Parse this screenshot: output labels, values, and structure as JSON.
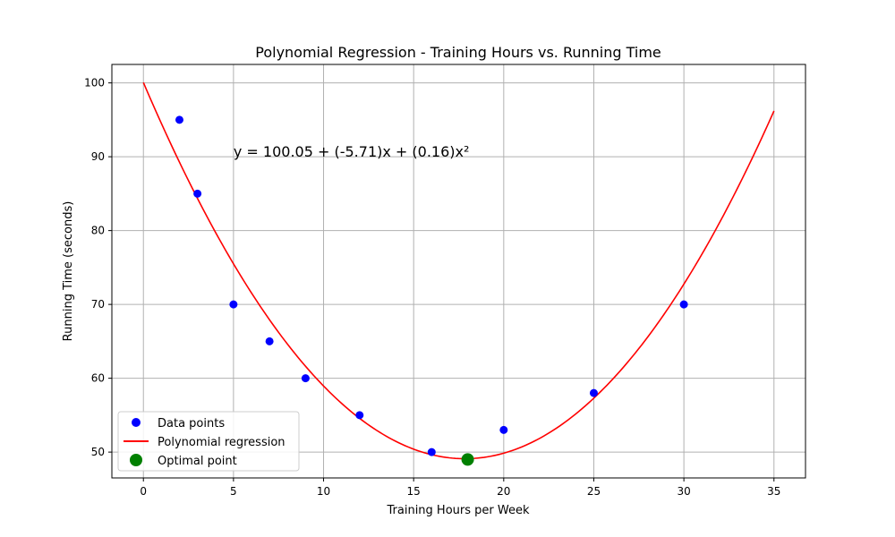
{
  "chart_data": {
    "type": "scatter",
    "title": "Polynomial Regression - Training Hours vs. Running Time",
    "xlabel": "Training Hours per Week",
    "ylabel": "Running Time (seconds)",
    "xlim": [
      -1.75,
      36.75
    ],
    "ylim": [
      46.5,
      102.5
    ],
    "xticks": [
      0,
      5,
      10,
      15,
      20,
      25,
      30,
      35
    ],
    "yticks": [
      50,
      60,
      70,
      80,
      90,
      100
    ],
    "grid": true,
    "legend_position": "lower-left",
    "annotation": "y = 100.05 + (-5.71)x + (0.16)x²",
    "annotation_at": {
      "x": 5,
      "y": 90
    },
    "series": [
      {
        "name": "Data points",
        "kind": "scatter",
        "color": "#0000ff",
        "x": [
          2,
          3,
          5,
          7,
          9,
          12,
          16,
          20,
          25,
          30
        ],
        "y": [
          95,
          85,
          70,
          65,
          60,
          55,
          50,
          53,
          58,
          70
        ]
      },
      {
        "name": "Polynomial regression",
        "kind": "line",
        "color": "#ff0000",
        "coefficients": [
          100.05,
          -5.71,
          0.16
        ],
        "x_range": [
          0,
          35
        ]
      },
      {
        "name": "Optimal point",
        "kind": "scatter",
        "color": "#008000",
        "x": [
          18
        ],
        "y": [
          49
        ]
      }
    ]
  }
}
